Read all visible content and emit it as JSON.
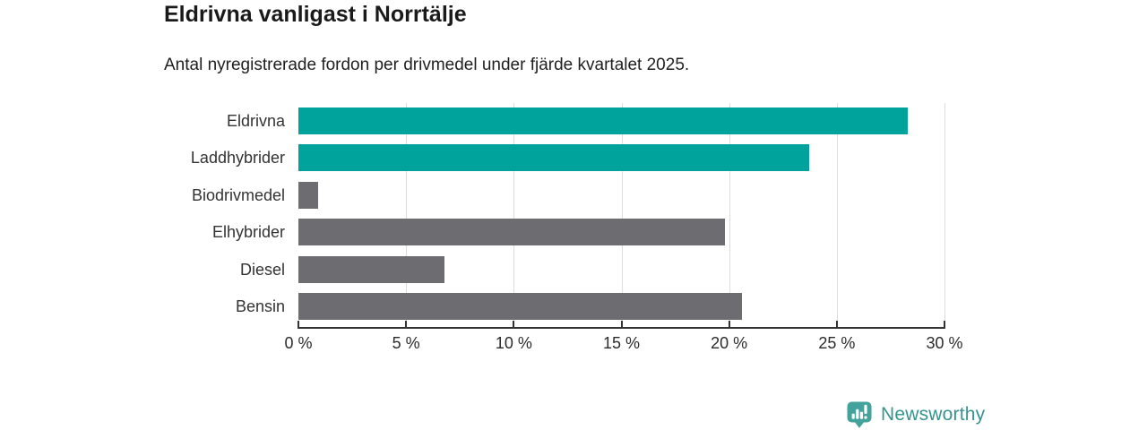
{
  "chart_data": {
    "type": "bar",
    "orientation": "horizontal",
    "title": "Eldrivna vanligast i Norrtälje",
    "subtitle": "Antal nyregistrerade fordon per drivmedel under fjärde kvartalet 2025.",
    "categories": [
      "Eldrivna",
      "Laddhybrider",
      "Biodrivmedel",
      "Elhybrider",
      "Diesel",
      "Bensin"
    ],
    "values": [
      28.3,
      23.7,
      0.9,
      19.8,
      6.8,
      20.6
    ],
    "unit": "%",
    "bar_colors": [
      "#00a39b",
      "#00a39b",
      "#6c6c71",
      "#6c6c71",
      "#6c6c71",
      "#6c6c71"
    ],
    "accent_color": "#00a39b",
    "muted_color": "#6c6c71",
    "xlim": [
      0,
      30
    ],
    "xticks": [
      0,
      5,
      10,
      15,
      20,
      25,
      30
    ],
    "xtick_labels": [
      "0 %",
      "5 %",
      "10 %",
      "15 %",
      "20 %",
      "25 %",
      "30 %"
    ],
    "grid": true,
    "legend_position": "none",
    "xlabel": "",
    "ylabel": ""
  },
  "footer": {
    "brand": "Newsworthy",
    "brand_color": "#35948e",
    "logo_icon_color": "#43a29b"
  }
}
